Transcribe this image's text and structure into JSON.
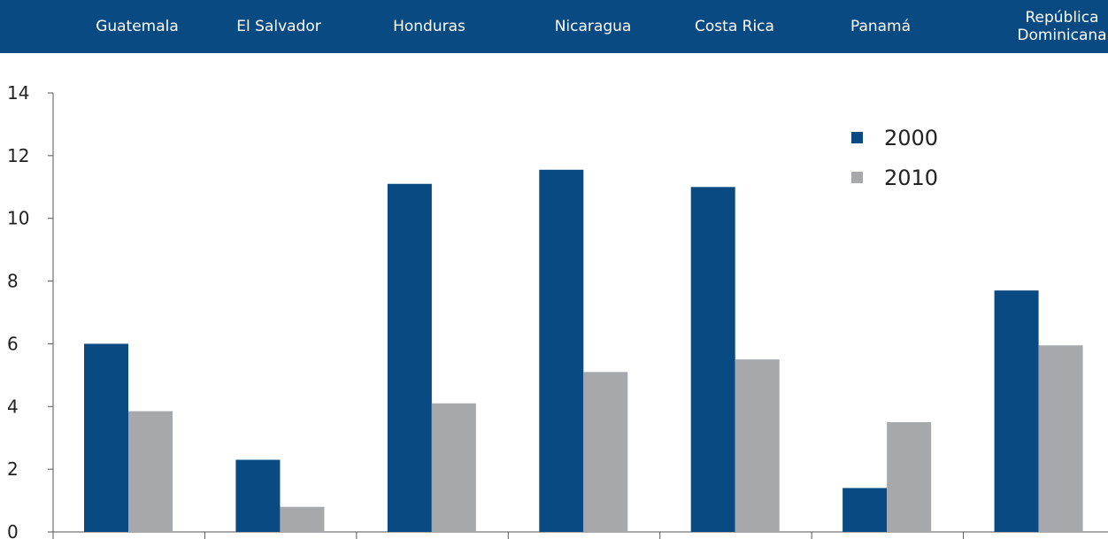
{
  "chart_data": {
    "type": "bar",
    "categories": [
      "Guatemala",
      "El Salvador",
      "Honduras",
      "Nicaragua",
      "Costa Rica",
      "Panamá",
      "República Dominicana"
    ],
    "category_label_lines": [
      [
        "Guatemala"
      ],
      [
        "El Salvador"
      ],
      [
        "Honduras"
      ],
      [
        "Nicaragua"
      ],
      [
        "Costa Rica"
      ],
      [
        "Panamá"
      ],
      [
        "República",
        "Dominicana"
      ]
    ],
    "series": [
      {
        "name": "2000",
        "color": "#0a4a82",
        "values": [
          6.0,
          2.3,
          11.1,
          11.55,
          11.0,
          1.4,
          7.7
        ]
      },
      {
        "name": "2010",
        "color": "#a6a8ab",
        "values": [
          3.85,
          0.8,
          4.1,
          5.1,
          5.5,
          3.5,
          5.95
        ]
      }
    ],
    "ylim": [
      0,
      14
    ],
    "yticks": [
      0,
      2,
      4,
      6,
      8,
      10,
      12,
      14
    ],
    "title": "",
    "xlabel": "",
    "ylabel": "",
    "legend_position": "top-right",
    "grid": false,
    "header_color": "#0a4a82"
  }
}
